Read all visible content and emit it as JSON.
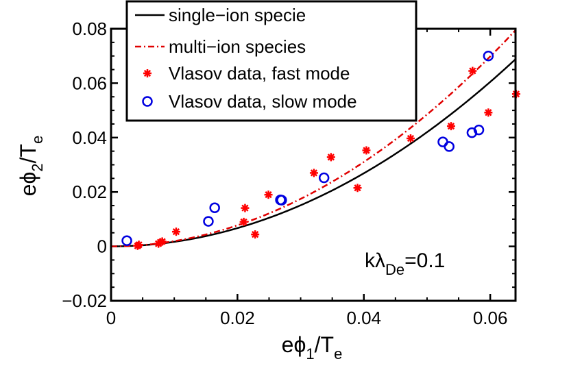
{
  "chart_data": {
    "type": "scatter",
    "xlabel": {
      "main": "eϕ",
      "sub1": "1",
      "slash": "/T",
      "sub2": "e"
    },
    "ylabel": {
      "main": "eϕ",
      "sub1": "2",
      "slash": "/T",
      "sub2": "e"
    },
    "xlim": [
      0,
      0.064
    ],
    "ylim": [
      -0.02,
      0.08
    ],
    "x_ticks": [
      0,
      0.02,
      0.04,
      0.06
    ],
    "x_tick_labels": [
      "0",
      "0.02",
      "0.04",
      "0.06"
    ],
    "y_ticks": [
      -0.02,
      0,
      0.02,
      0.04,
      0.06,
      0.08
    ],
    "y_tick_labels": [
      "−0.02",
      "0",
      "0.02",
      "0.04",
      "0.06",
      "0.08"
    ],
    "annotation": {
      "main": "kλ",
      "sub": "De",
      "rest": "=0.1"
    },
    "legend_position": "top-left (extends above plot)",
    "series": [
      {
        "name": "single−ion specie",
        "kind": "line",
        "style": "solid",
        "color": "#000000",
        "formula": "y = 16.8 * x^2",
        "coef": 16.8
      },
      {
        "name": "multi−ion species",
        "kind": "line",
        "style": "dash-dot",
        "color": "#e00000",
        "formula": "y = 19.4 * x^2",
        "coef": 19.4
      },
      {
        "name": "Vlasov data, fast mode",
        "kind": "scatter",
        "marker": "asterisk",
        "color": "#ff0000",
        "points": [
          [
            0.0042,
            0.0002
          ],
          [
            0.0044,
            0.0006
          ],
          [
            0.0075,
            0.001
          ],
          [
            0.0078,
            0.0015
          ],
          [
            0.0081,
            0.0018
          ],
          [
            0.0103,
            0.0054
          ],
          [
            0.021,
            0.009
          ],
          [
            0.0212,
            0.0141
          ],
          [
            0.0228,
            0.0044
          ],
          [
            0.0249,
            0.019
          ],
          [
            0.0321,
            0.027
          ],
          [
            0.0348,
            0.0328
          ],
          [
            0.039,
            0.0215
          ],
          [
            0.0404,
            0.0353
          ],
          [
            0.0474,
            0.0397
          ],
          [
            0.0538,
            0.0442
          ],
          [
            0.0572,
            0.0645
          ],
          [
            0.0597,
            0.0492
          ],
          [
            0.0641,
            0.056
          ]
        ]
      },
      {
        "name": "Vlasov data, slow mode",
        "kind": "scatter",
        "marker": "circle",
        "color": "#0000e0",
        "points": [
          [
            0.0025,
            0.0021
          ],
          [
            0.0154,
            0.0092
          ],
          [
            0.0164,
            0.0142
          ],
          [
            0.0268,
            0.0171
          ],
          [
            0.027,
            0.017
          ],
          [
            0.0337,
            0.0252
          ],
          [
            0.0525,
            0.0384
          ],
          [
            0.0535,
            0.0367
          ],
          [
            0.0571,
            0.0418
          ],
          [
            0.0582,
            0.0428
          ],
          [
            0.0597,
            0.07
          ]
        ]
      }
    ]
  },
  "colors": {
    "background": "#ffffff",
    "axes": "#000000"
  }
}
